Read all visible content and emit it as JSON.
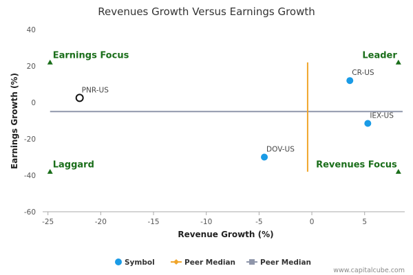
{
  "chart_data": {
    "type": "scatter",
    "title": "Revenues Growth Versus Earnings Growth",
    "xlabel": "Revenue Growth (%)",
    "ylabel": "Earnings Growth (%)",
    "xlim": [
      -25.5,
      8.8
    ],
    "ylim": [
      -60,
      40
    ],
    "x_ticks": [
      "-25",
      "-20",
      "-15",
      "-10",
      "-5",
      "0",
      "5"
    ],
    "x_tick_values": [
      -25,
      -20,
      -15,
      -10,
      -5,
      0,
      5
    ],
    "y_ticks": [
      "40",
      "20",
      "0",
      "-20",
      "-40",
      "-60"
    ],
    "y_tick_values": [
      40,
      20,
      0,
      -20,
      -40,
      -60
    ],
    "grid": false,
    "points": [
      {
        "label": "PNR-US",
        "x": -22.0,
        "y": 2.5,
        "style": "hollow"
      },
      {
        "label": "CR-US",
        "x": 3.6,
        "y": 12.0,
        "style": "filled"
      },
      {
        "label": "IEX-US",
        "x": 5.3,
        "y": -11.5,
        "style": "filled"
      },
      {
        "label": "DOV-US",
        "x": -4.5,
        "y": -30.0,
        "style": "filled"
      }
    ],
    "peer_median": {
      "x": -0.4,
      "y": -5.0
    },
    "quadrant_labels": [
      {
        "text": "Earnings Focus",
        "x": -24.8,
        "y": 22
      },
      {
        "text": "Leader",
        "x": 8.2,
        "y": 22
      },
      {
        "text": "Laggard",
        "x": -24.8,
        "y": -38
      },
      {
        "text": "Revenues Focus",
        "x": 8.2,
        "y": -38
      }
    ],
    "legend": [
      {
        "label": "Symbol",
        "kind": "dot",
        "color": "#1a9be6"
      },
      {
        "label": "Peer Median",
        "kind": "line-diamond",
        "color": "#f0a52a"
      },
      {
        "label": "Peer Median",
        "kind": "line-square",
        "color": "#8f96aa"
      }
    ],
    "legend_position": "bottom-center",
    "colors": {
      "point": "#1a9be6",
      "hollow_point_stroke": "#111111",
      "vertical_median": "#f0a52a",
      "horizontal_median": "#8f96aa",
      "quadrant_text": "#1a6e1a",
      "quadrant_marker": "#1a6e1a"
    }
  },
  "credit": "www.capitalcube.com"
}
